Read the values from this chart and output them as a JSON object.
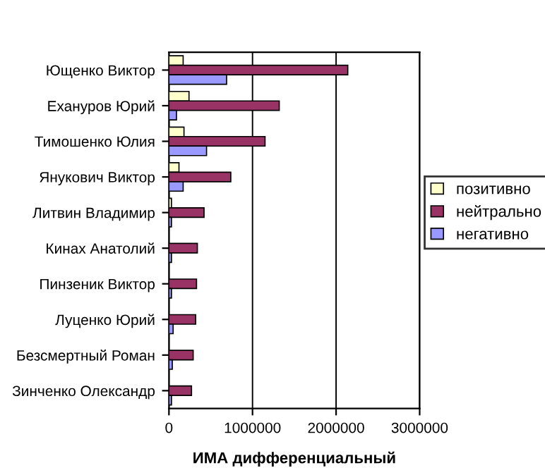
{
  "chart_data": {
    "type": "bar",
    "orientation": "horizontal",
    "xlabel": "ИМА дифференциальный",
    "categories": [
      "Ющенко Виктор",
      "Ехануров Юрий",
      "Тимошенко Юлия",
      "Янукович Виктор",
      "Литвин Владимир",
      "Кинах Анатолий",
      "Пинзеник Виктор",
      "Луценко Юрий",
      "Безсмертный Роман",
      "Зинченко Олександр"
    ],
    "series": [
      {
        "name": "позитивно",
        "color": "#ffffcc",
        "values": [
          170000,
          240000,
          180000,
          120000,
          30000,
          null,
          null,
          null,
          null,
          null
        ]
      },
      {
        "name": "нейтрально",
        "color": "#993366",
        "values": [
          2140000,
          1320000,
          1150000,
          740000,
          420000,
          340000,
          330000,
          320000,
          290000,
          270000
        ]
      },
      {
        "name": "негативно",
        "color": "#9999ff",
        "values": [
          690000,
          90000,
          450000,
          170000,
          30000,
          30000,
          30000,
          50000,
          40000,
          30000
        ]
      }
    ],
    "xlim": [
      0,
      3000000
    ],
    "xticks": [
      0,
      1000000,
      2000000,
      3000000
    ],
    "grid": "x",
    "legend": "right"
  }
}
